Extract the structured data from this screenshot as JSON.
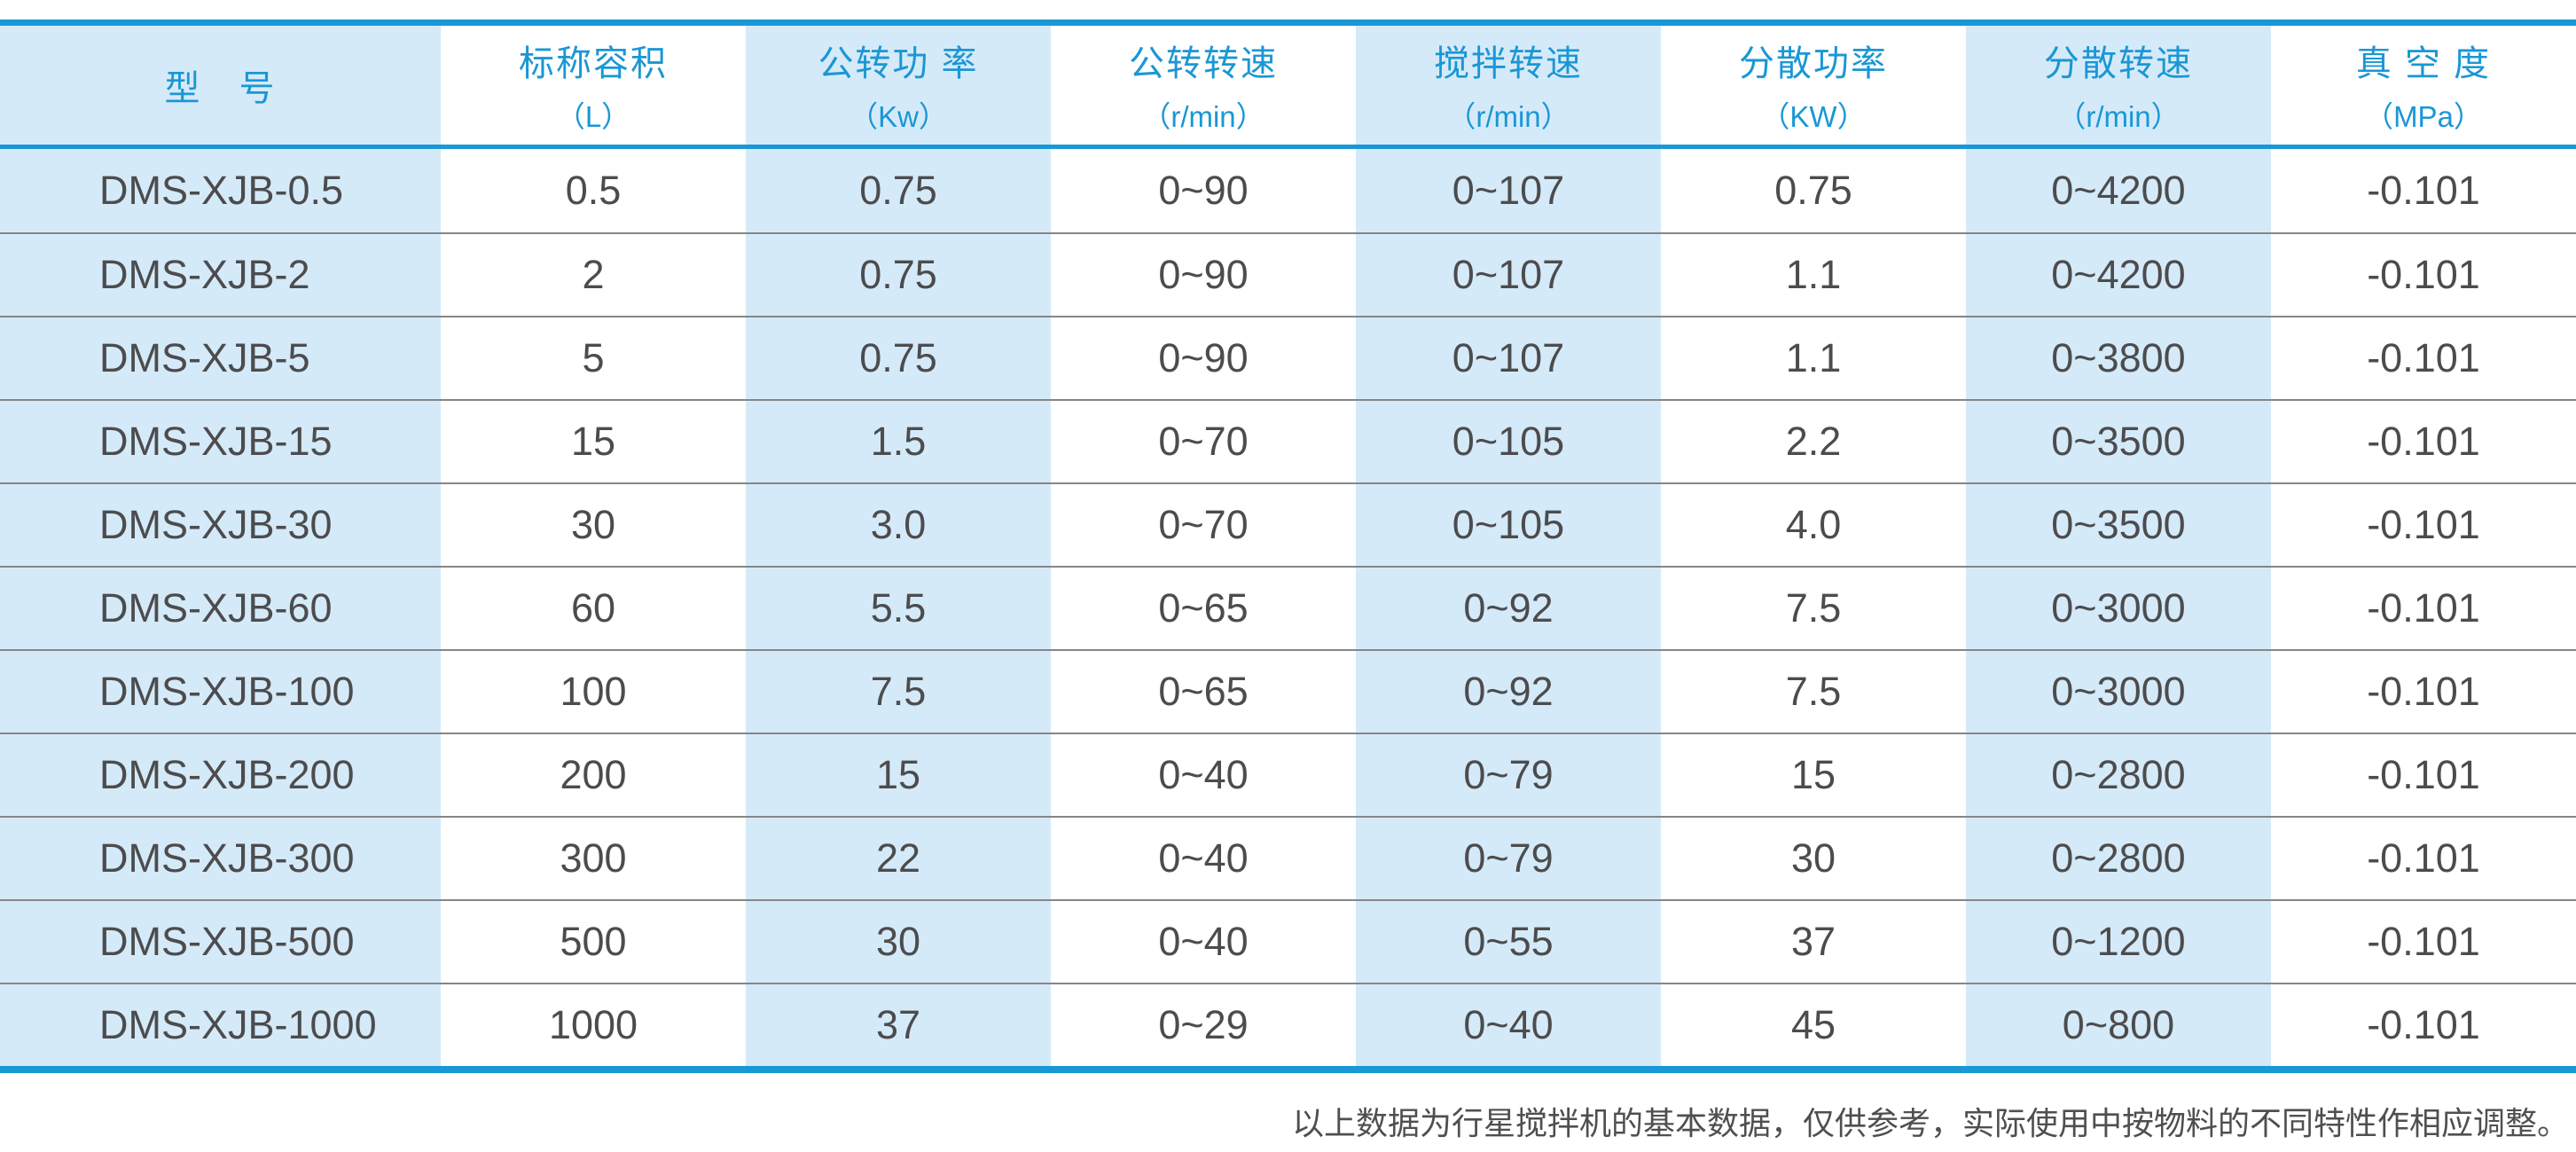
{
  "chart_data": {
    "type": "table",
    "columns": [
      {
        "title": "型　号",
        "unit": ""
      },
      {
        "title": "标称容积",
        "unit": "（L）"
      },
      {
        "title": "公转功 率",
        "unit": "（Kw）"
      },
      {
        "title": "公转转速",
        "unit": "（r/min）"
      },
      {
        "title": "搅拌转速",
        "unit": "（r/min）"
      },
      {
        "title": "分散功率",
        "unit": "（KW）"
      },
      {
        "title": "分散转速",
        "unit": "（r/min）"
      },
      {
        "title": "真 空 度",
        "unit": "（MPa）"
      }
    ],
    "rows": [
      [
        "DMS-XJB-0.5",
        "0.5",
        "0.75",
        "0~90",
        "0~107",
        "0.75",
        "0~4200",
        "-0.101"
      ],
      [
        "DMS-XJB-2",
        "2",
        "0.75",
        "0~90",
        "0~107",
        "1.1",
        "0~4200",
        "-0.101"
      ],
      [
        "DMS-XJB-5",
        "5",
        "0.75",
        "0~90",
        "0~107",
        "1.1",
        "0~3800",
        "-0.101"
      ],
      [
        "DMS-XJB-15",
        "15",
        "1.5",
        "0~70",
        "0~105",
        "2.2",
        "0~3500",
        "-0.101"
      ],
      [
        "DMS-XJB-30",
        "30",
        "3.0",
        "0~70",
        "0~105",
        "4.0",
        "0~3500",
        "-0.101"
      ],
      [
        "DMS-XJB-60",
        "60",
        "5.5",
        "0~65",
        "0~92",
        "7.5",
        "0~3000",
        "-0.101"
      ],
      [
        "DMS-XJB-100",
        "100",
        "7.5",
        "0~65",
        "0~92",
        "7.5",
        "0~3000",
        "-0.101"
      ],
      [
        "DMS-XJB-200",
        "200",
        "15",
        "0~40",
        "0~79",
        "15",
        "0~2800",
        "-0.101"
      ],
      [
        "DMS-XJB-300",
        "300",
        "22",
        "0~40",
        "0~79",
        "30",
        "0~2800",
        "-0.101"
      ],
      [
        "DMS-XJB-500",
        "500",
        "30",
        "0~40",
        "0~55",
        "37",
        "0~1200",
        "-0.101"
      ],
      [
        "DMS-XJB-1000",
        "1000",
        "37",
        "0~29",
        "0~40",
        "45",
        "0~800",
        "-0.101"
      ]
    ]
  },
  "footnote": "以上数据为行星搅拌机的基本数据，仅供参考，实际使用中按物料的不同特性作相应调整。",
  "colors": {
    "accent": "#1a97d5",
    "stripe": "#d5eaf8",
    "text": "#4c4c4e",
    "separator": "#868686"
  }
}
